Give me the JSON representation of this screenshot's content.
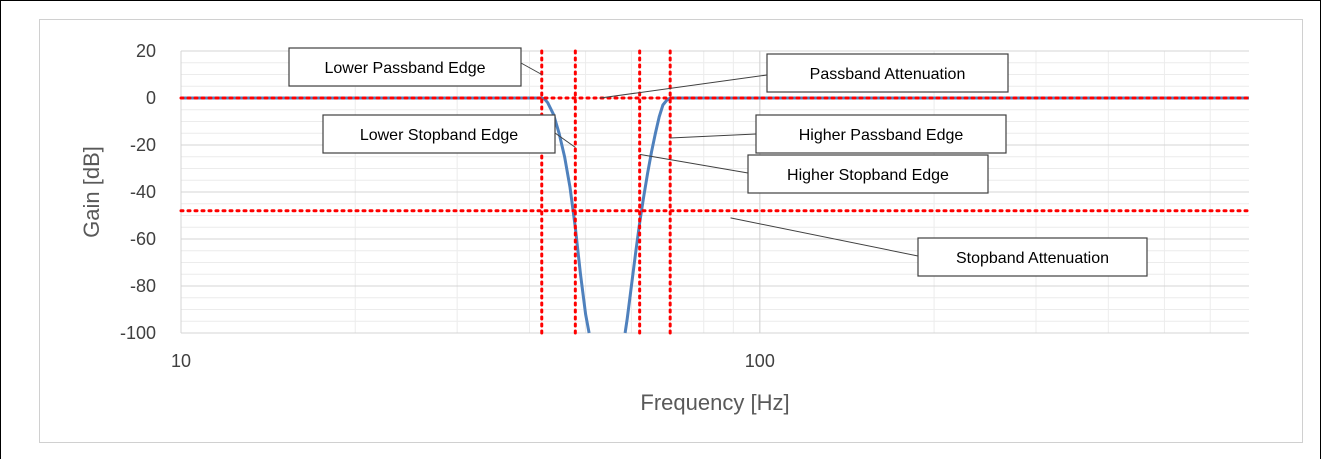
{
  "chart_data": {
    "type": "line",
    "xscale": "log",
    "xlim": [
      10,
      700
    ],
    "ylim": [
      -100,
      20
    ],
    "xlabel": "Frequency [Hz]",
    "ylabel": "Gain [dB]",
    "x_tick_labels": [
      10,
      100
    ],
    "y_tick_labels": [
      20,
      0,
      -20,
      -40,
      -60,
      -80,
      -100
    ],
    "grid": true,
    "series": [
      {
        "color": "#4F81BD",
        "segments": [
          [
            [
              10,
              0
            ],
            [
              40,
              0
            ],
            [
              42,
              0
            ],
            [
              42.5,
              -0.5
            ],
            [
              43,
              -2
            ],
            [
              44,
              -7
            ],
            [
              45,
              -15
            ],
            [
              46,
              -25
            ],
            [
              47,
              -38
            ],
            [
              48,
              -55
            ],
            [
              49,
              -75
            ],
            [
              50,
              -92
            ],
            [
              50.7,
              -100
            ]
          ],
          [
            [
              58.5,
              -100
            ],
            [
              59,
              -94
            ],
            [
              60,
              -80
            ],
            [
              61,
              -66
            ],
            [
              62,
              -53
            ],
            [
              63,
              -42
            ],
            [
              64,
              -32
            ],
            [
              65,
              -23
            ],
            [
              66,
              -15
            ],
            [
              67,
              -8
            ],
            [
              68,
              -3
            ],
            [
              69,
              -1
            ],
            [
              70,
              0
            ],
            [
              100,
              0
            ],
            [
              700,
              0
            ]
          ]
        ]
      }
    ],
    "reference_lines": {
      "color": "#FF0000",
      "vertical_x": [
        42,
        48,
        62,
        70
      ],
      "horizontal_y": [
        0,
        -48
      ]
    },
    "annotations": [
      {
        "label": "Lower Passband Edge",
        "target": [
          42,
          10
        ]
      },
      {
        "label": "Passband Attenuation",
        "target": [
          53,
          0
        ]
      },
      {
        "label": "Lower Stopband Edge",
        "target": [
          48,
          -21
        ]
      },
      {
        "label": "Higher Passband Edge",
        "target": [
          70,
          -17
        ]
      },
      {
        "label": "Higher Stopband Edge",
        "target": [
          62,
          -24
        ]
      },
      {
        "label": "Stopband Attenuation",
        "target": [
          89,
          -51
        ]
      }
    ]
  }
}
